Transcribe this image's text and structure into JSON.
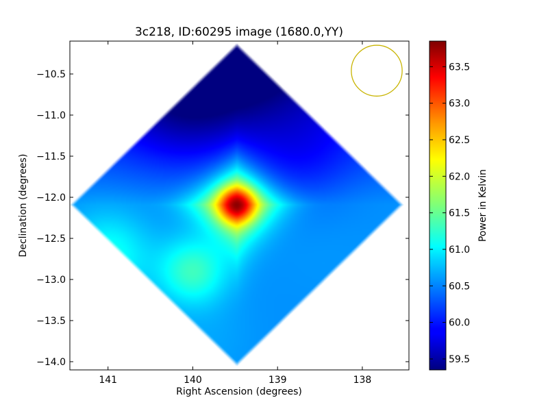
{
  "chart_data": {
    "type": "heatmap",
    "title": "3c218, ID:60295 image (1680.0,YY)",
    "xlabel": "Right Ascension (degrees)",
    "ylabel": "Declination (degrees)",
    "colorbar_label": "Power in Kelvin",
    "colormap": "jet",
    "x_inverted": true,
    "xlim": [
      141.45,
      137.45
    ],
    "ylim": [
      -14.1,
      -10.1
    ],
    "xticks": [
      141,
      140,
      139,
      138
    ],
    "yticks": [
      -10.5,
      -11.0,
      -11.5,
      -12.0,
      -12.5,
      -13.0,
      -13.5,
      -14.0
    ],
    "color_range": [
      59.35,
      63.85
    ],
    "colorbar_ticks": [
      59.5,
      60.0,
      60.5,
      61.0,
      61.5,
      62.0,
      62.5,
      63.0,
      63.5
    ],
    "footprint_center": [
      139.48,
      -12.09
    ],
    "footprint_half_width_deg": 1.97,
    "peak": {
      "x": 139.48,
      "y": -12.09,
      "value": 63.85
    },
    "features": [
      {
        "x": 139.48,
        "y": -10.3,
        "value": 59.4,
        "radius": 1.0
      },
      {
        "x": 140.2,
        "y": -10.9,
        "value": 59.9,
        "radius": 0.7
      },
      {
        "x": 141.0,
        "y": -12.7,
        "value": 61.5,
        "radius": 0.5
      },
      {
        "x": 140.0,
        "y": -12.9,
        "value": 61.8,
        "radius": 0.4
      },
      {
        "x": 139.8,
        "y": -13.7,
        "value": 60.7,
        "radius": 0.5
      },
      {
        "x": 138.7,
        "y": -11.6,
        "value": 60.1,
        "radius": 0.6
      },
      {
        "x": 138.5,
        "y": -12.6,
        "value": 60.6,
        "radius": 0.6
      }
    ],
    "beam_circle": {
      "x": 137.83,
      "y": -10.46,
      "radius_deg": 0.3,
      "color": "#c8b400"
    }
  }
}
